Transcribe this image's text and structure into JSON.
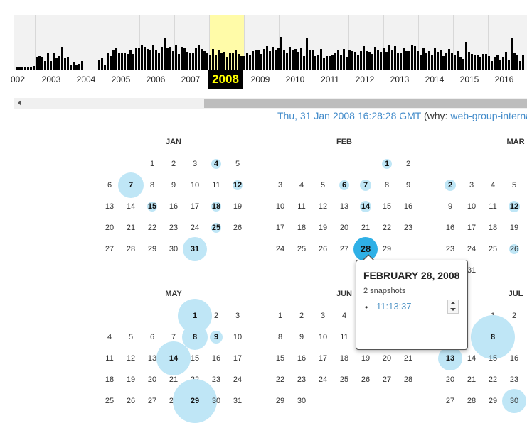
{
  "timeline": {
    "years": [
      "002",
      "2003",
      "2004",
      "2005",
      "2006",
      "2007",
      "2008",
      "2009",
      "2010",
      "2011",
      "2012",
      "2013",
      "2014",
      "2015",
      "2016"
    ],
    "selected_year": "2008",
    "highlight_color": "#fffba8"
  },
  "header": {
    "timestamp": "Thu, 31 Jan 2008 16:28:28 GMT",
    "why_prefix": "(why: ",
    "why_link": "web-group-interna"
  },
  "months": [
    {
      "name": "JAN",
      "days": [
        "1",
        "2",
        "3",
        "4",
        "5",
        "6",
        "7",
        "8",
        "9",
        "10",
        "11",
        "12",
        "13",
        "14",
        "15",
        "16",
        "17",
        "18",
        "19",
        "20",
        "21",
        "22",
        "23",
        "24",
        "25",
        "26",
        "27",
        "28",
        "29",
        "30",
        "31"
      ]
    },
    {
      "name": "FEB",
      "days": [
        "1",
        "2",
        "3",
        "4",
        "5",
        "6",
        "7",
        "8",
        "9",
        "10",
        "11",
        "12",
        "13",
        "14",
        "15",
        "16",
        "17",
        "18",
        "19",
        "20",
        "21",
        "22",
        "23",
        "24",
        "25",
        "26",
        "27",
        "28",
        "29"
      ]
    },
    {
      "name": "MAR",
      "days": [
        "2",
        "3",
        "4",
        "5",
        "9",
        "10",
        "11",
        "12",
        "16",
        "17",
        "18",
        "19",
        "23",
        "24",
        "25",
        "26",
        "31"
      ]
    },
    {
      "name": "MAY",
      "days": [
        "1",
        "2",
        "3",
        "4",
        "5",
        "6",
        "7",
        "8",
        "9",
        "10",
        "11",
        "12",
        "13",
        "14",
        "15",
        "16",
        "17",
        "18",
        "19",
        "20",
        "21",
        "22",
        "23",
        "24",
        "25",
        "26",
        "27",
        "28",
        "29",
        "30",
        "31"
      ]
    },
    {
      "name": "JUN",
      "days": [
        "1",
        "2",
        "3",
        "4",
        "8",
        "9",
        "10",
        "11",
        "15",
        "16",
        "17",
        "18",
        "19",
        "20",
        "21",
        "22",
        "23",
        "24",
        "25",
        "26",
        "27",
        "28",
        "29",
        "30"
      ]
    },
    {
      "name": "JUL",
      "days": [
        "1",
        "2",
        "8",
        "13",
        "14",
        "15",
        "16",
        "20",
        "21",
        "22",
        "23",
        "27",
        "28",
        "29",
        "30"
      ]
    }
  ],
  "popup": {
    "title": "FEBRUARY 28, 2008",
    "count": "2 snapshots",
    "time": "11:13:37",
    "bullet": "•"
  },
  "colors": {
    "accent": "#428bca",
    "bubble": "#bfe6f6",
    "selected_bubble": "#2fb0e6"
  }
}
